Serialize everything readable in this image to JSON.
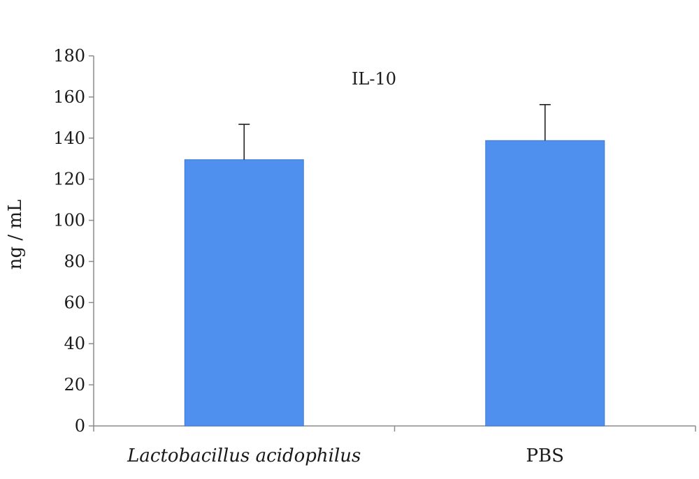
{
  "chart_data": {
    "type": "bar",
    "title": "IL-10",
    "xlabel": "",
    "ylabel": "ng / mL",
    "ylim": [
      0,
      180
    ],
    "yticks": [
      0,
      20,
      40,
      60,
      80,
      100,
      120,
      140,
      160,
      180
    ],
    "categories": [
      "Lactobacillus acidophilus",
      "PBS"
    ],
    "category_italic": [
      true,
      false
    ],
    "values": [
      129.5,
      138.8
    ],
    "error_upper": [
      17.2,
      17.5
    ],
    "bar_color": "#4f8fee",
    "bar_edge_color": "#3f7ad4",
    "grid": false,
    "legend": "none"
  }
}
